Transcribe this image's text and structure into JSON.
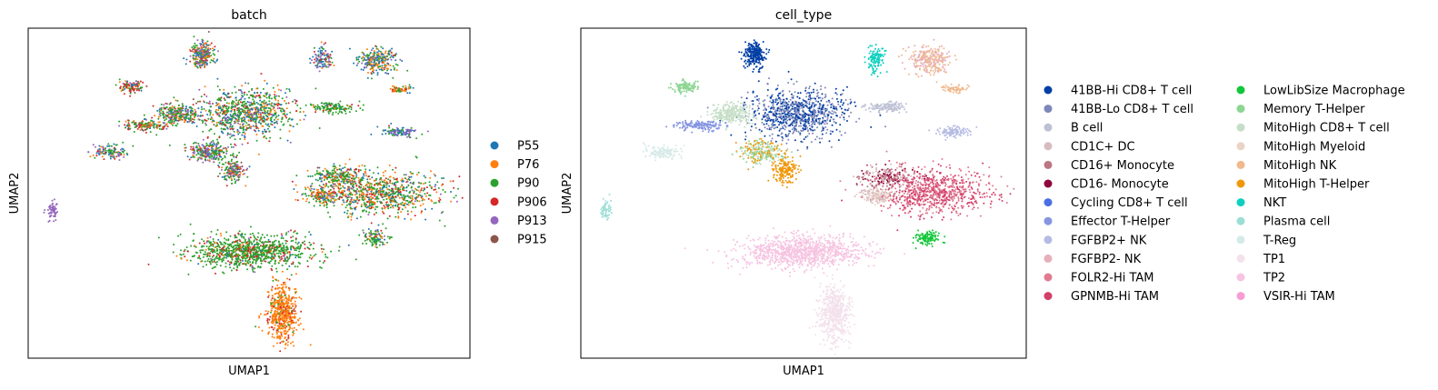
{
  "chart_data": [
    {
      "type": "scatter",
      "title": "batch",
      "xlabel": "UMAP1",
      "ylabel": "UMAP2",
      "grid": false,
      "ticks": "none",
      "legend_position": "right",
      "series": [
        {
          "name": "P55",
          "color": "#1f77b4"
        },
        {
          "name": "P76",
          "color": "#ff7f0e"
        },
        {
          "name": "P90",
          "color": "#2ca02c"
        },
        {
          "name": "P906",
          "color": "#d62728"
        },
        {
          "name": "P913",
          "color": "#9467bd"
        },
        {
          "name": "P915",
          "color": "#8c564b"
        }
      ]
    },
    {
      "type": "scatter",
      "title": "cell_type",
      "xlabel": "UMAP1",
      "ylabel": "UMAP2",
      "grid": false,
      "ticks": "none",
      "legend_position": "right",
      "legend_columns": 2,
      "series": [
        {
          "name": "41BB-Hi CD8+ T cell",
          "color": "#023fa5"
        },
        {
          "name": "41BB-Lo CD8+ T cell",
          "color": "#7d87b9"
        },
        {
          "name": "B cell",
          "color": "#bec1d4"
        },
        {
          "name": "CD1C+ DC",
          "color": "#d6bcc0"
        },
        {
          "name": "CD16+ Monocyte",
          "color": "#bb7784"
        },
        {
          "name": "CD16- Monocyte",
          "color": "#8e063b"
        },
        {
          "name": "Cycling CD8+ T cell",
          "color": "#4a6fe3"
        },
        {
          "name": "Effector T-Helper",
          "color": "#8595e1"
        },
        {
          "name": "FGFBP2+ NK",
          "color": "#b5bbe3"
        },
        {
          "name": "FGFBP2- NK",
          "color": "#e6afb9"
        },
        {
          "name": "FOLR2-Hi TAM",
          "color": "#e07b91"
        },
        {
          "name": "GPNMB-Hi TAM",
          "color": "#d33f6a"
        },
        {
          "name": "LowLibSize Macrophage",
          "color": "#11c638"
        },
        {
          "name": "Memory T-Helper",
          "color": "#8dd593"
        },
        {
          "name": "MitoHigh CD8+ T cell",
          "color": "#c6dec7"
        },
        {
          "name": "MitoHigh Myeloid",
          "color": "#ead3c6"
        },
        {
          "name": "MitoHigh NK",
          "color": "#f0b98d"
        },
        {
          "name": "MitoHigh T-Helper",
          "color": "#ef9708"
        },
        {
          "name": "NKT",
          "color": "#0fcfc0"
        },
        {
          "name": "Plasma cell",
          "color": "#9cded6"
        },
        {
          "name": "T-Reg",
          "color": "#d5eae7"
        },
        {
          "name": "TP1",
          "color": "#f3e1eb"
        },
        {
          "name": "TP2",
          "color": "#f6c4e1"
        },
        {
          "name": "VSIR-Hi TAM",
          "color": "#f79cd4"
        }
      ]
    }
  ]
}
